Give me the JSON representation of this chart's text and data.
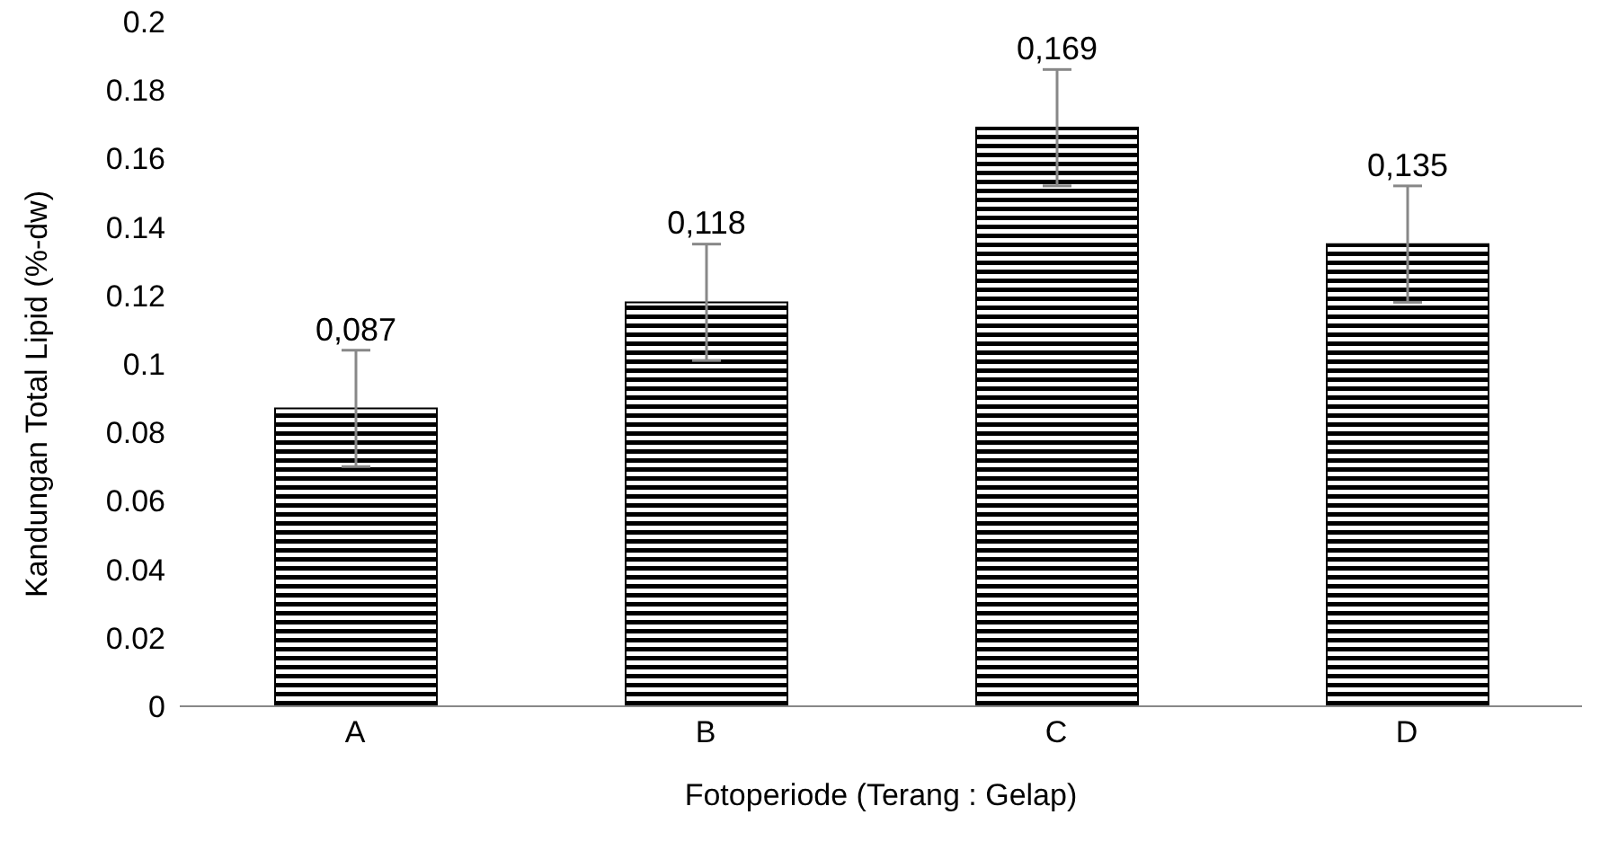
{
  "chart_data": {
    "type": "bar",
    "xlabel": "Fotoperiode (Terang : Gelap)",
    "ylabel": "Kandungan Total Lipid (%-dw)",
    "categories": [
      "A",
      "B",
      "C",
      "D"
    ],
    "values": [
      0.087,
      0.118,
      0.169,
      0.135
    ],
    "errors": [
      0.017,
      0.017,
      0.017,
      0.017
    ],
    "value_labels": [
      "0,087",
      "0,118",
      "0,169",
      "0,135"
    ],
    "color": "#000000",
    "ylim": [
      0,
      0.2
    ],
    "yticks": [
      0,
      0.02,
      0.04,
      0.06,
      0.08,
      0.1,
      0.12,
      0.14,
      0.16,
      0.18,
      0.2
    ],
    "grid": false,
    "legend": false
  }
}
